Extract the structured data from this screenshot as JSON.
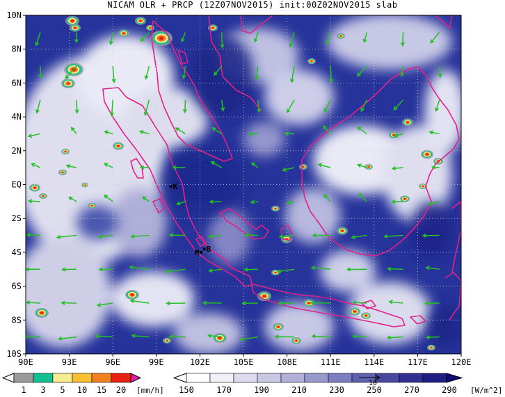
{
  "title": "NICAM OLR + PRCP (12Z07NOV2015) init:00Z02NOV2015 slab",
  "map": {
    "lon_labels": [
      "90E",
      "93E",
      "96E",
      "99E",
      "102E",
      "105E",
      "108E",
      "111E",
      "114E",
      "117E",
      "120E"
    ],
    "lat_labels": [
      "10N",
      "8N",
      "6N",
      "4N",
      "2N",
      "EQ",
      "2S",
      "4S",
      "6S",
      "8S",
      "10S"
    ],
    "lon_range": [
      90,
      120
    ],
    "lat_range": [
      -10,
      10
    ],
    "markers": [
      {
        "label": "K",
        "lon": 100.3,
        "lat": -0.1
      },
      {
        "label": "M",
        "lon": 101.8,
        "lat": -4.0
      },
      {
        "label": "B",
        "lon": 102.6,
        "lat": -3.8
      }
    ],
    "colors": {
      "olr_dark": "#1c2a8c",
      "coastline": "#e0208a",
      "wind_vectors": "#22c022",
      "grid": "#d0d0d0"
    }
  },
  "precip_legend": {
    "ticks": [
      "1",
      "3",
      "5",
      "10",
      "15",
      "20"
    ],
    "unit": "[mm/h]",
    "colors": [
      "#9a9a9a",
      "#10c090",
      "#f8ec90",
      "#f8c030",
      "#f08020",
      "#e82010",
      "#e020a0"
    ]
  },
  "olr_legend": {
    "ticks": [
      "150",
      "170",
      "190",
      "210",
      "230",
      "250",
      "270",
      "290"
    ],
    "unit": "[W/m^2]",
    "colors": [
      "#ffffff",
      "#f0f0f8",
      "#dcdcee",
      "#c8c8e4",
      "#b0b0da",
      "#9898cc",
      "#7c7cc0",
      "#6060b0",
      "#4848a0",
      "#303090",
      "#1e1e82",
      "#0c0c70"
    ],
    "vector_label": "10"
  }
}
